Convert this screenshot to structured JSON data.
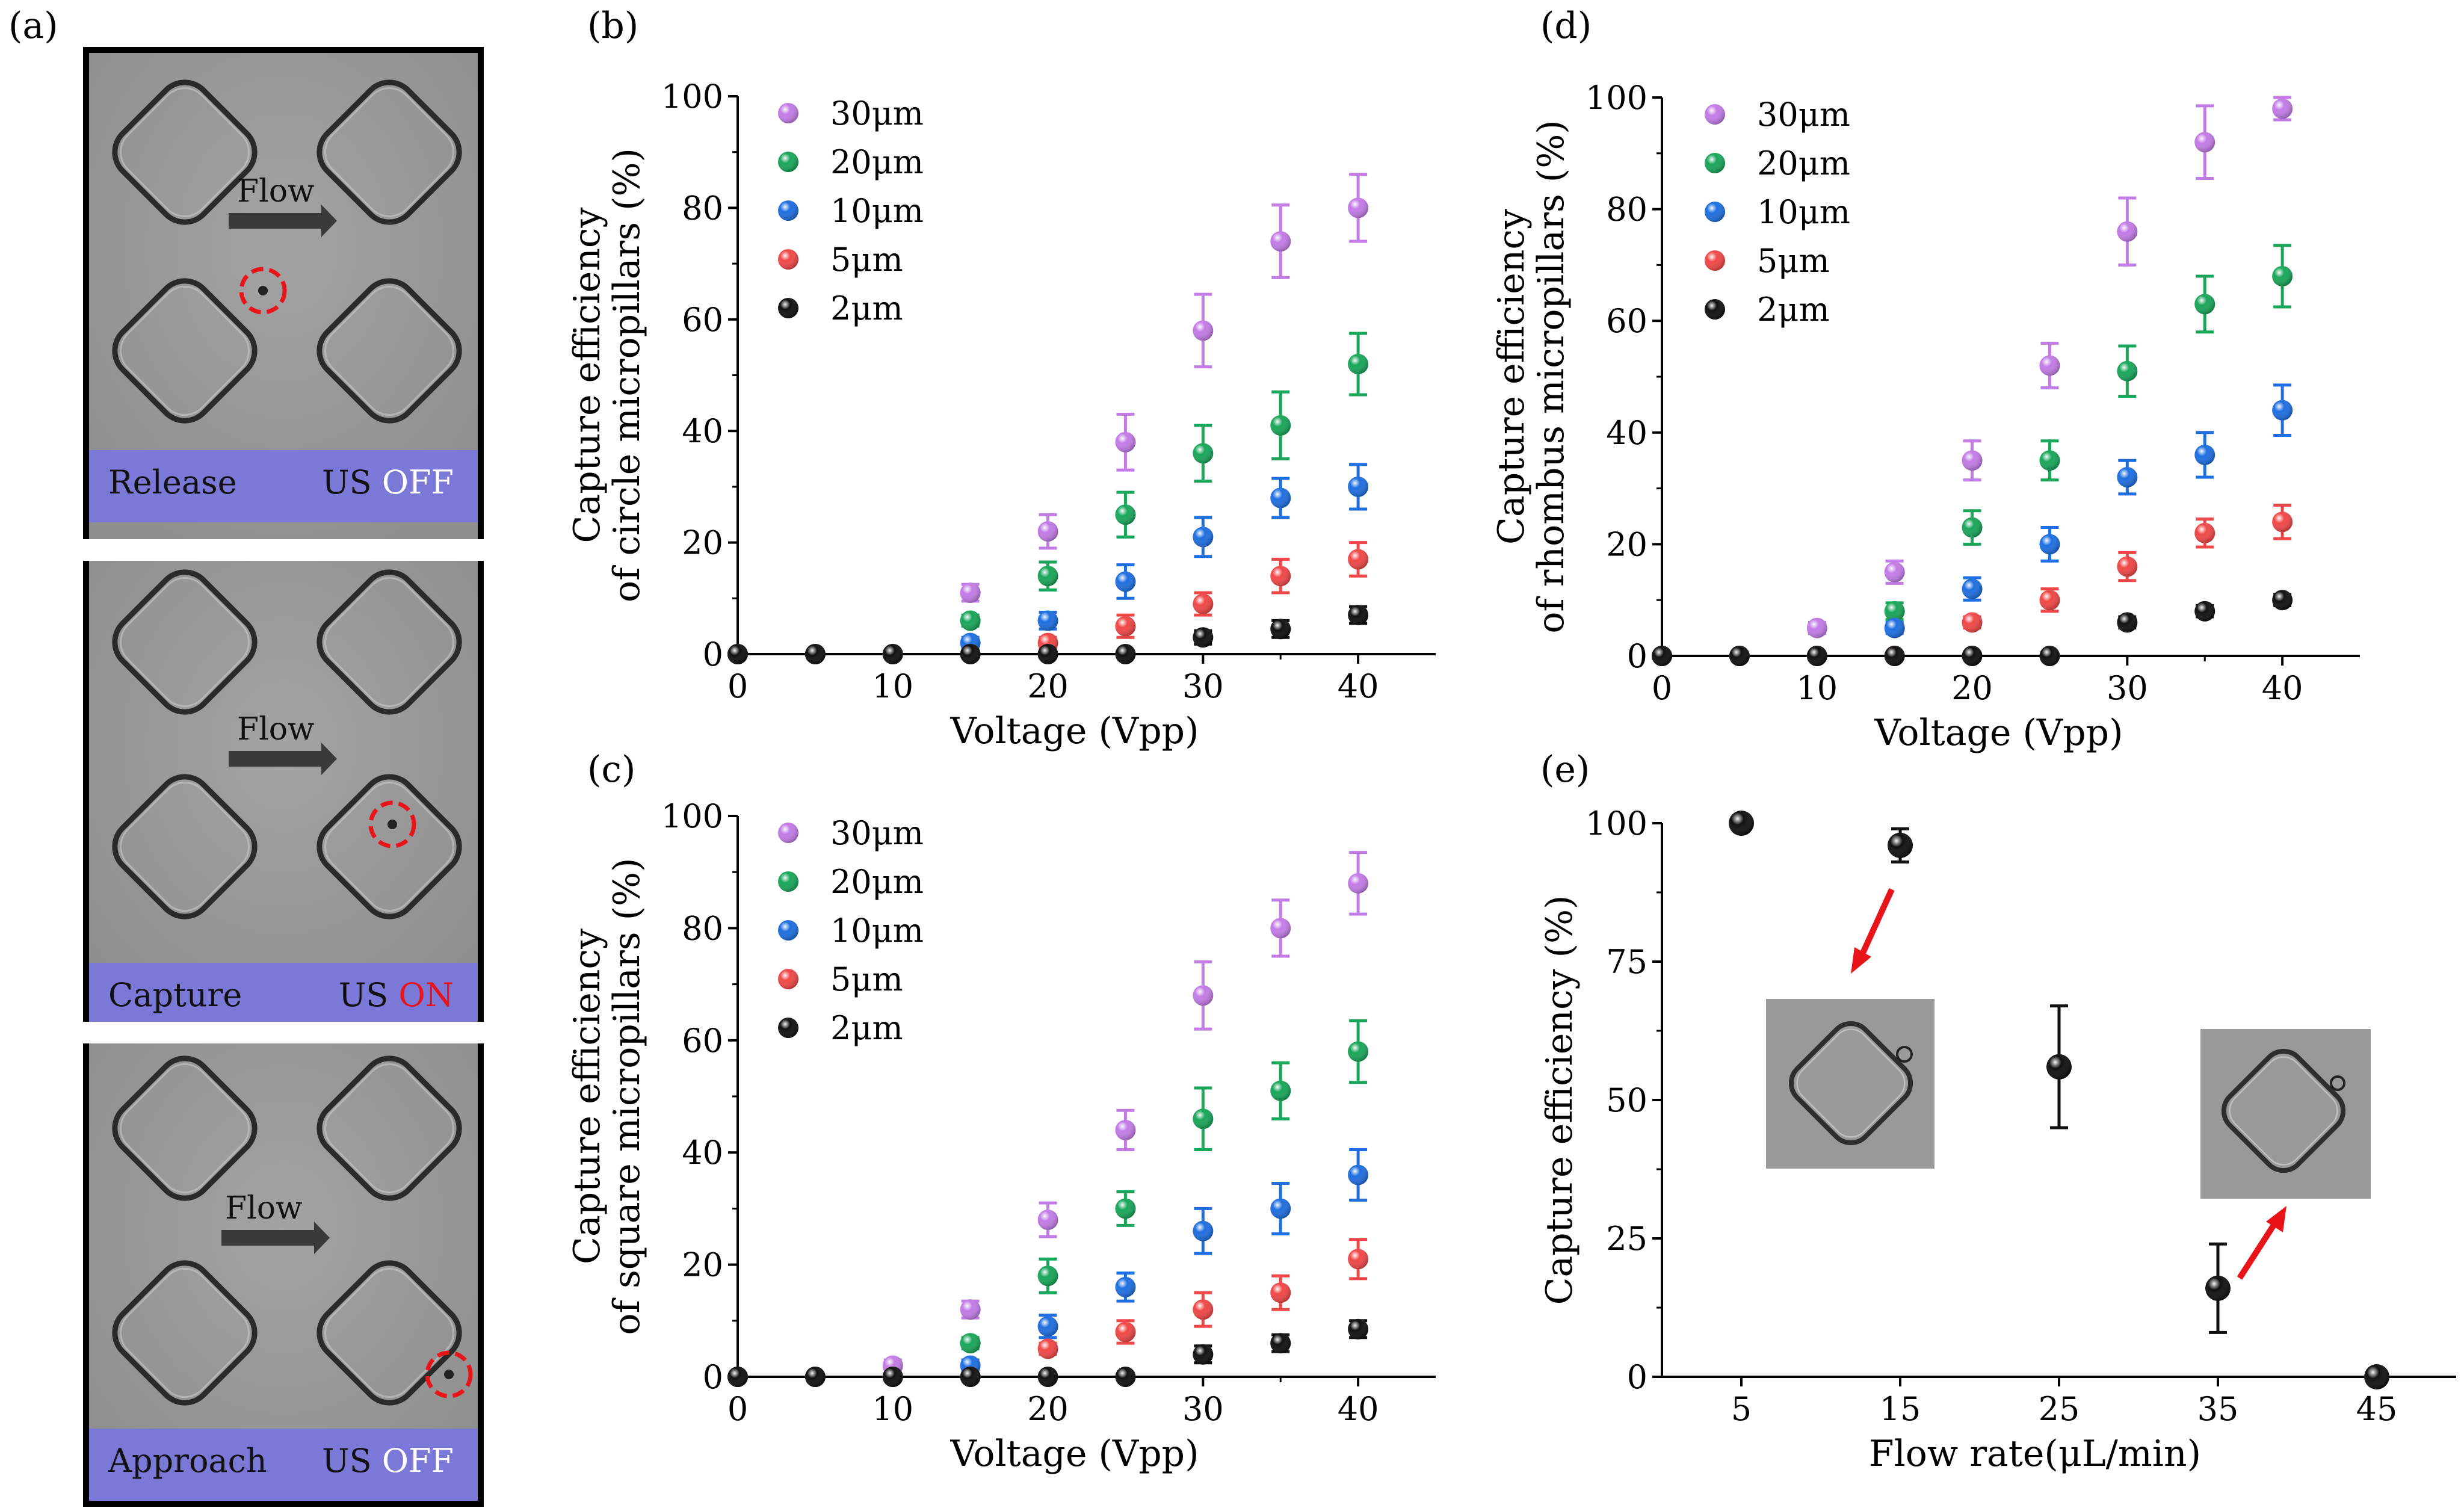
{
  "figure": {
    "panel_labels": [
      "(a)",
      "(b)",
      "(c)",
      "(d)",
      "(e)"
    ]
  },
  "panel_a": {
    "frames": [
      {
        "flow_label": "Flow",
        "state": "Release",
        "us_label": "US",
        "us_state": "OFF",
        "us_state_color": "#ffffff"
      },
      {
        "flow_label": "Flow",
        "state": "Capture",
        "us_label": "US",
        "us_state": "ON",
        "us_state_color": "#e8141a"
      },
      {
        "flow_label": "Flow",
        "state": "Approach",
        "us_label": "US",
        "us_state": "OFF",
        "us_state_color": "#ffffff"
      }
    ]
  },
  "chart_data": [
    {
      "id": "b",
      "type": "scatter",
      "title": "",
      "xlabel": "Voltage (Vpp)",
      "ylabel": [
        "Capture efficiency",
        "of circle micropillars  (%)"
      ],
      "xlim": [
        0,
        45
      ],
      "ylim": [
        0,
        100
      ],
      "xticks": [
        0,
        10,
        20,
        30,
        40
      ],
      "yticks": [
        0,
        20,
        40,
        60,
        80,
        100
      ],
      "legend": "top-left",
      "x": [
        0,
        5,
        10,
        15,
        20,
        25,
        30,
        35,
        40
      ],
      "series": [
        {
          "name": "30μm",
          "color": "#c37ce6",
          "values": [
            0,
            0,
            0,
            11,
            22,
            38,
            58,
            74,
            80
          ],
          "errors": [
            0,
            0,
            0,
            1.5,
            3,
            5,
            6.5,
            6.5,
            6
          ]
        },
        {
          "name": "20μm",
          "color": "#1aa65a",
          "values": [
            0,
            0,
            0,
            6,
            14,
            25,
            36,
            41,
            52
          ],
          "errors": [
            0,
            0,
            0,
            1,
            2.5,
            4,
            5,
            6,
            5.5
          ]
        },
        {
          "name": "10μm",
          "color": "#1f6fe0",
          "values": [
            0,
            0,
            0,
            2,
            6,
            13,
            21,
            28,
            30
          ],
          "errors": [
            0,
            0,
            0,
            1,
            1.5,
            3,
            3.5,
            3.5,
            4
          ]
        },
        {
          "name": "5μm",
          "color": "#f04848",
          "values": [
            0,
            0,
            0,
            0,
            2,
            5,
            9,
            14,
            17
          ],
          "errors": [
            0,
            0,
            0,
            0,
            1,
            2,
            2,
            3,
            3
          ]
        },
        {
          "name": "2μm",
          "color": "#111111",
          "values": [
            0,
            0,
            0,
            0,
            0,
            0,
            3,
            4.5,
            7
          ],
          "errors": [
            0,
            0,
            0,
            0,
            0,
            0.5,
            1.2,
            1.5,
            1.5
          ]
        }
      ]
    },
    {
      "id": "c",
      "type": "scatter",
      "title": "",
      "xlabel": "Voltage (Vpp)",
      "ylabel": [
        "Capture efficiency",
        "of square micropillars  (%)"
      ],
      "xlim": [
        0,
        45
      ],
      "ylim": [
        0,
        100
      ],
      "xticks": [
        0,
        10,
        20,
        30,
        40
      ],
      "yticks": [
        0,
        20,
        40,
        60,
        80,
        100
      ],
      "legend": "top-left",
      "x": [
        0,
        5,
        10,
        15,
        20,
        25,
        30,
        35,
        40
      ],
      "series": [
        {
          "name": "30μm",
          "color": "#c37ce6",
          "values": [
            0,
            0,
            2,
            12,
            28,
            44,
            68,
            80,
            88
          ],
          "errors": [
            0,
            0,
            1,
            1.5,
            3,
            3.5,
            6,
            5,
            5.5
          ]
        },
        {
          "name": "20μm",
          "color": "#1aa65a",
          "values": [
            0,
            0,
            0,
            6,
            18,
            30,
            46,
            51,
            58
          ],
          "errors": [
            0,
            0,
            0,
            1,
            3,
            3,
            5.5,
            5,
            5.5
          ]
        },
        {
          "name": "10μm",
          "color": "#1f6fe0",
          "values": [
            0,
            0,
            0,
            2,
            9,
            16,
            26,
            30,
            36
          ],
          "errors": [
            0,
            0,
            0,
            1,
            2,
            2.5,
            4,
            4.5,
            4.5
          ]
        },
        {
          "name": "5μm",
          "color": "#f04848",
          "values": [
            0,
            0,
            0,
            0,
            5,
            8,
            12,
            15,
            21
          ],
          "errors": [
            0,
            0,
            0,
            0,
            1,
            2,
            3,
            3,
            3.5
          ]
        },
        {
          "name": "2μm",
          "color": "#111111",
          "values": [
            0,
            0,
            0,
            0,
            0,
            0,
            4,
            6,
            8.5
          ],
          "errors": [
            0,
            0,
            0,
            0,
            0,
            0.5,
            1.5,
            1.5,
            1.5
          ]
        }
      ]
    },
    {
      "id": "d",
      "type": "scatter",
      "title": "",
      "xlabel": "Voltage (Vpp)",
      "ylabel": [
        "Capture efficiency",
        "of rhombus micropillars  (%)"
      ],
      "xlim": [
        0,
        45
      ],
      "ylim": [
        0,
        100
      ],
      "xticks": [
        0,
        10,
        20,
        30,
        40
      ],
      "yticks": [
        0,
        20,
        40,
        60,
        80,
        100
      ],
      "legend": "top-left",
      "x": [
        0,
        5,
        10,
        15,
        20,
        25,
        30,
        35,
        40
      ],
      "series": [
        {
          "name": "30μm",
          "color": "#c37ce6",
          "values": [
            0,
            0,
            5,
            15,
            35,
            52,
            76,
            92,
            98
          ],
          "errors": [
            0,
            0,
            1,
            2,
            3.5,
            4,
            6,
            6.5,
            2
          ]
        },
        {
          "name": "20μm",
          "color": "#1aa65a",
          "values": [
            0,
            0,
            0,
            8,
            23,
            35,
            51,
            63,
            68
          ],
          "errors": [
            0,
            0,
            0,
            1.5,
            3,
            3.5,
            4.5,
            5,
            5.5
          ]
        },
        {
          "name": "10μm",
          "color": "#1f6fe0",
          "values": [
            0,
            0,
            0,
            5,
            12,
            20,
            32,
            36,
            44
          ],
          "errors": [
            0,
            0,
            0,
            1,
            2,
            3,
            3,
            4,
            4.5
          ]
        },
        {
          "name": "5μm",
          "color": "#f04848",
          "values": [
            0,
            0,
            0,
            0,
            6,
            10,
            16,
            22,
            24
          ],
          "errors": [
            0,
            0,
            0,
            0,
            1,
            2,
            2.5,
            2.5,
            3
          ]
        },
        {
          "name": "2μm",
          "color": "#111111",
          "values": [
            0,
            0,
            0,
            0,
            0,
            0,
            6,
            8,
            10
          ],
          "errors": [
            0,
            0,
            0,
            0,
            0,
            0.5,
            1,
            1,
            1
          ]
        }
      ]
    },
    {
      "id": "e",
      "type": "scatter",
      "title": "",
      "xlabel": "Flow rate(μL/min)",
      "ylabel": [
        "Capture efficiency (%)"
      ],
      "xlim": [
        0,
        50
      ],
      "ylim": [
        0,
        100
      ],
      "xticks": [
        5,
        15,
        25,
        35,
        45
      ],
      "yticks": [
        0,
        25,
        50,
        75,
        100
      ],
      "legend": "none",
      "x": [
        5,
        15,
        25,
        35,
        45
      ],
      "series": [
        {
          "name": "capture",
          "color": "#111111",
          "values": [
            100,
            96,
            56,
            16,
            0
          ],
          "errors": [
            0,
            3,
            11,
            8,
            0
          ]
        }
      ]
    }
  ]
}
